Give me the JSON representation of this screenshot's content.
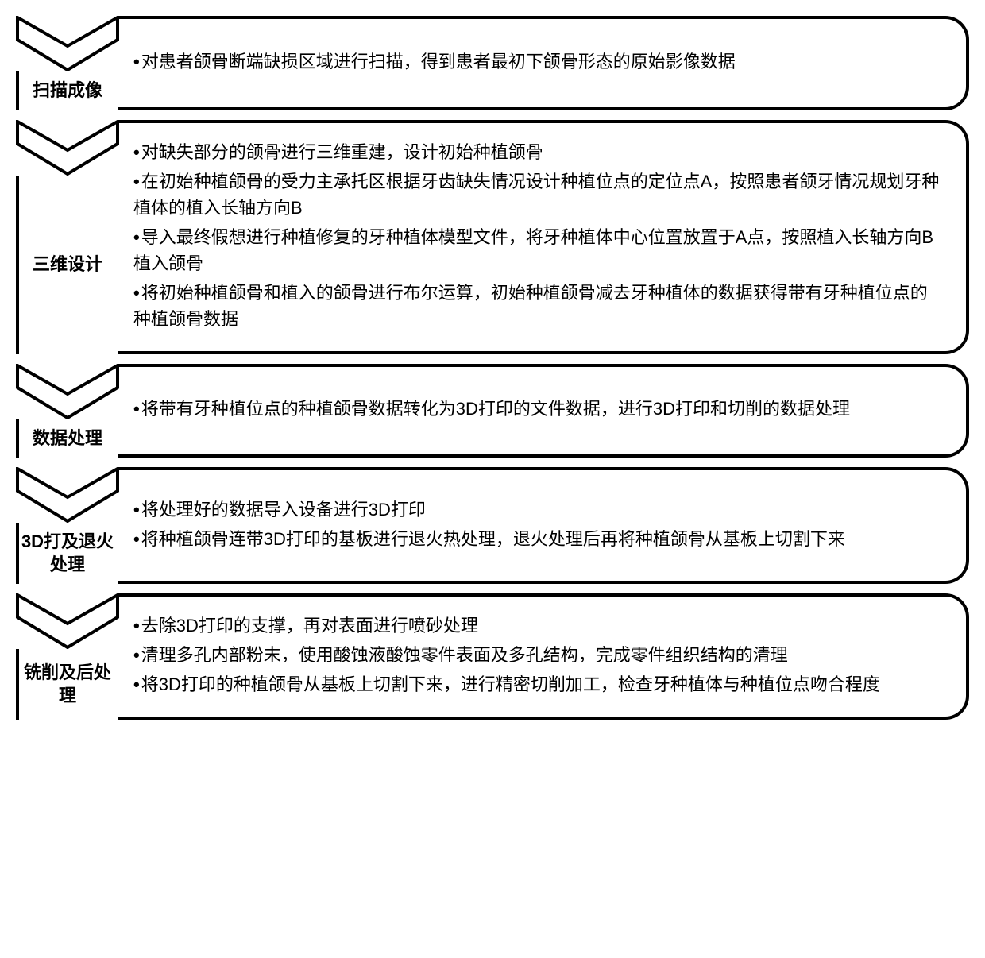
{
  "diagram": {
    "type": "flowchart",
    "orientation": "vertical",
    "chevron_color": "#000000",
    "chevron_stroke_width": 4,
    "box_border_color": "#000000",
    "box_border_width": 4,
    "box_border_radius": 30,
    "background_color": "#ffffff",
    "text_color": "#000000",
    "title_fontsize": 22,
    "body_fontsize": 22,
    "font_family": "Microsoft YaHei",
    "steps": [
      {
        "title": "扫描成像",
        "items": [
          "对患者颌骨断端缺损区域进行扫描，得到患者最初下颌骨形态的原始影像数据"
        ]
      },
      {
        "title": "三维设计",
        "items": [
          "对缺失部分的颌骨进行三维重建，设计初始种植颌骨",
          "在初始种植颌骨的受力主承托区根据牙齿缺失情况设计种植位点的定位点A，按照患者颌牙情况规划牙种植体的植入长轴方向B",
          "导入最终假想进行种植修复的牙种植体模型文件，将牙种植体中心位置放置于A点，按照植入长轴方向B植入颌骨",
          "将初始种植颌骨和植入的颌骨进行布尔运算，初始种植颌骨减去牙种植体的数据获得带有牙种植位点的种植颌骨数据"
        ]
      },
      {
        "title": "数据处理",
        "items": [
          "将带有牙种植位点的种植颌骨数据转化为3D打印的文件数据，进行3D打印和切削的数据处理"
        ]
      },
      {
        "title": "3D打及退火处理",
        "items": [
          "将处理好的数据导入设备进行3D打印",
          "将种植颌骨连带3D打印的基板进行退火热处理，退火处理后再将种植颌骨从基板上切割下来"
        ]
      },
      {
        "title": "铣削及后处理",
        "items": [
          "去除3D打印的支撑，再对表面进行喷砂处理",
          "清理多孔内部粉末，使用酸蚀液酸蚀零件表面及多孔结构，完成零件组织结构的清理",
          "将3D打印的种植颌骨从基板上切割下来，进行精密切削加工，检查牙种植体与种植位点吻合程度"
        ]
      }
    ]
  }
}
